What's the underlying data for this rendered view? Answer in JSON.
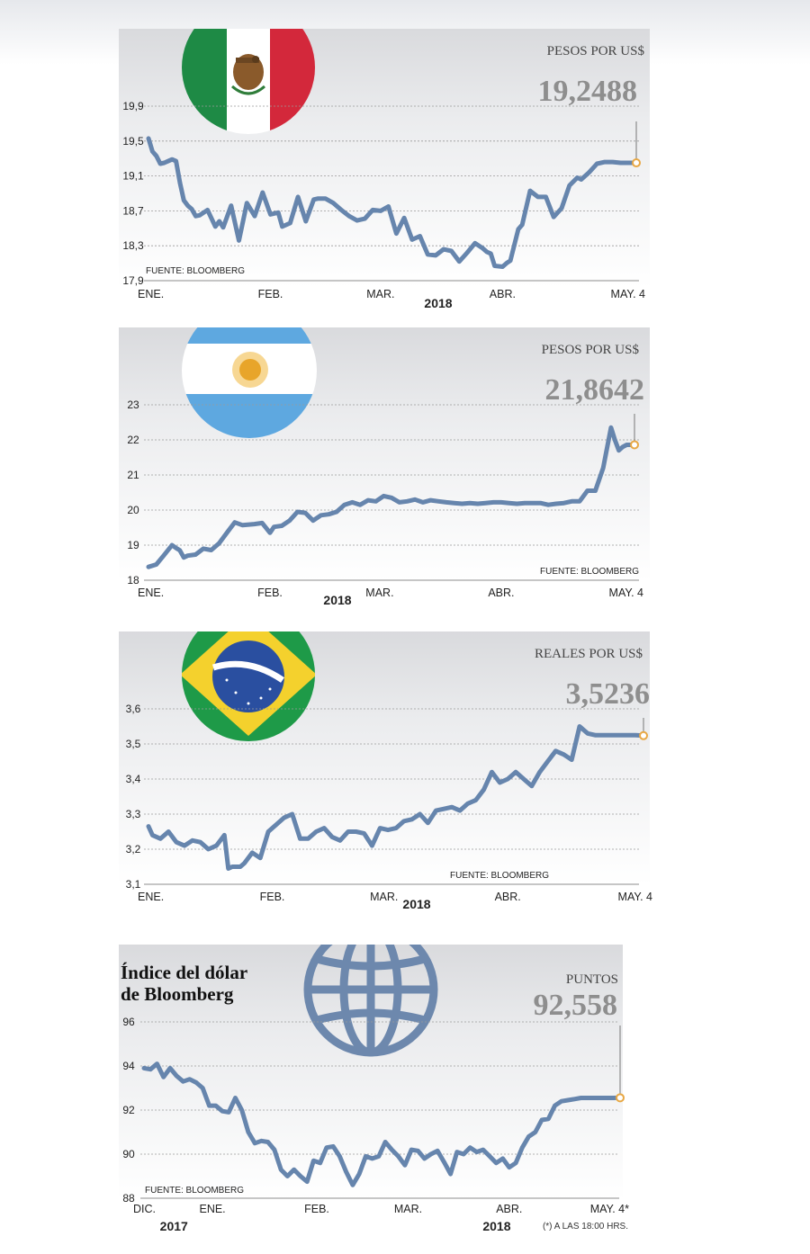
{
  "chart_data": [
    {
      "type": "line",
      "country": "mexico",
      "unit_label": "PESOS POR US$",
      "current_value": "19,2488",
      "source": "FUENTE: BLOOMBERG",
      "year_label": "2018",
      "y_ticks": [
        "17,9",
        "18,3",
        "18,7",
        "19,1",
        "19,5",
        "19,9"
      ],
      "ylim": [
        17.9,
        19.9
      ],
      "x_ticks": [
        {
          "label": "ENE.",
          "x": 0
        },
        {
          "label": "FEB.",
          "x": 31
        },
        {
          "label": "MAR.",
          "x": 59
        },
        {
          "label": "ABR.",
          "x": 90
        },
        {
          "label": "MAY. 4",
          "x": 124
        }
      ],
      "xlim": [
        0,
        124
      ],
      "series": [
        {
          "x": [
            0,
            1,
            2,
            3,
            4,
            5,
            6,
            7,
            8,
            9,
            10,
            11,
            12,
            13,
            15,
            17,
            18,
            19,
            21,
            23,
            25,
            27,
            29,
            31,
            33,
            34,
            36,
            38,
            40,
            42,
            43,
            45,
            47,
            49,
            51,
            53,
            55,
            57,
            59,
            61,
            63,
            65,
            67,
            69,
            71,
            73,
            75,
            77,
            79,
            81,
            83,
            85,
            86,
            87,
            88,
            90,
            91,
            92,
            94,
            95,
            97,
            99,
            101,
            103,
            105,
            107,
            109,
            110,
            112,
            114,
            116,
            118,
            120,
            121,
            122,
            124
          ],
          "y": [
            19.53,
            19.38,
            19.33,
            19.24,
            19.25,
            19.27,
            19.29,
            19.27,
            19.02,
            18.82,
            18.76,
            18.72,
            18.64,
            18.65,
            18.71,
            18.52,
            18.58,
            18.51,
            18.76,
            18.36,
            18.79,
            18.64,
            18.91,
            18.66,
            18.68,
            18.52,
            18.56,
            18.86,
            18.58,
            18.83,
            18.84,
            18.84,
            18.79,
            18.71,
            18.64,
            18.59,
            18.61,
            18.71,
            18.7,
            18.75,
            18.44,
            18.62,
            18.37,
            18.41,
            18.2,
            18.19,
            18.26,
            18.24,
            18.12,
            18.22,
            18.33,
            18.27,
            18.23,
            18.21,
            18.07,
            18.06,
            18.1,
            18.13,
            18.49,
            18.54,
            18.93,
            18.86,
            18.86,
            18.63,
            18.73,
            18.99,
            19.08,
            19.06,
            19.14,
            19.24,
            19.26,
            19.26,
            19.25,
            19.25,
            19.25,
            19.25
          ]
        }
      ]
    },
    {
      "type": "line",
      "country": "argentina",
      "unit_label": "PESOS POR US$",
      "current_value": "21,8642",
      "source": "FUENTE: BLOOMBERG",
      "year_label": "2018",
      "y_ticks": [
        "18",
        "19",
        "20",
        "21",
        "22",
        "23"
      ],
      "ylim": [
        18,
        23
      ],
      "x_ticks": [
        {
          "label": "ENE.",
          "x": 0
        },
        {
          "label": "FEB.",
          "x": 31
        },
        {
          "label": "MAR.",
          "x": 59
        },
        {
          "label": "ABR.",
          "x": 90
        },
        {
          "label": "MAY. 4",
          "x": 124
        }
      ],
      "xlim": [
        0,
        124
      ],
      "series": [
        {
          "x": [
            0,
            2,
            4,
            6,
            7,
            8,
            9,
            10,
            12,
            14,
            16,
            18,
            20,
            22,
            24,
            25,
            27,
            29,
            31,
            32,
            34,
            36,
            38,
            40,
            42,
            44,
            46,
            48,
            50,
            52,
            54,
            56,
            58,
            60,
            62,
            64,
            66,
            68,
            70,
            72,
            74,
            76,
            78,
            80,
            82,
            84,
            86,
            88,
            90,
            92,
            94,
            96,
            98,
            100,
            102,
            104,
            106,
            108,
            110,
            112,
            114,
            116,
            118,
            119,
            120,
            121,
            122,
            123,
            124
          ],
          "y": [
            18.38,
            18.45,
            18.72,
            19.0,
            18.92,
            18.85,
            18.65,
            18.7,
            18.73,
            18.9,
            18.86,
            19.05,
            19.35,
            19.65,
            19.57,
            19.58,
            19.6,
            19.63,
            19.35,
            19.52,
            19.55,
            19.7,
            19.95,
            19.92,
            19.7,
            19.85,
            19.88,
            19.95,
            20.15,
            20.22,
            20.15,
            20.28,
            20.25,
            20.4,
            20.35,
            20.22,
            20.25,
            20.3,
            20.22,
            20.28,
            20.25,
            20.22,
            20.2,
            20.18,
            20.2,
            20.18,
            20.2,
            20.22,
            20.22,
            20.2,
            20.18,
            20.2,
            20.2,
            20.2,
            20.15,
            20.18,
            20.2,
            20.25,
            20.25,
            20.55,
            20.55,
            21.2,
            22.35,
            22.0,
            21.7,
            21.8,
            21.86,
            21.86,
            21.86
          ]
        }
      ]
    },
    {
      "type": "line",
      "country": "brazil",
      "unit_label": "REALES POR US$",
      "current_value": "3,5236",
      "source": "FUENTE: BLOOMBERG",
      "year_label": "2018",
      "y_ticks": [
        "3,1",
        "3,2",
        "3,3",
        "3,4",
        "3,5",
        "3,6"
      ],
      "ylim": [
        3.1,
        3.6
      ],
      "x_ticks": [
        {
          "label": "ENE.",
          "x": 0
        },
        {
          "label": "FEB.",
          "x": 31
        },
        {
          "label": "MAR.",
          "x": 59
        },
        {
          "label": "ABR.",
          "x": 90
        },
        {
          "label": "MAY. 4",
          "x": 124
        }
      ],
      "xlim": [
        0,
        124
      ],
      "series": [
        {
          "x": [
            0,
            1,
            3,
            5,
            7,
            9,
            11,
            13,
            15,
            17,
            19,
            20,
            21,
            22,
            23,
            24,
            26,
            28,
            30,
            32,
            34,
            36,
            38,
            40,
            42,
            44,
            46,
            48,
            50,
            52,
            54,
            56,
            58,
            60,
            62,
            64,
            66,
            68,
            70,
            72,
            74,
            76,
            78,
            80,
            82,
            84,
            86,
            88,
            90,
            92,
            94,
            96,
            98,
            100,
            102,
            104,
            106,
            108,
            110,
            112,
            114,
            116,
            118,
            120,
            122,
            124
          ],
          "y": [
            3.265,
            3.24,
            3.23,
            3.25,
            3.22,
            3.21,
            3.225,
            3.22,
            3.2,
            3.21,
            3.24,
            3.145,
            3.15,
            3.15,
            3.15,
            3.16,
            3.19,
            3.175,
            3.25,
            3.27,
            3.29,
            3.3,
            3.23,
            3.23,
            3.25,
            3.26,
            3.235,
            3.225,
            3.25,
            3.25,
            3.245,
            3.21,
            3.26,
            3.255,
            3.26,
            3.28,
            3.285,
            3.3,
            3.275,
            3.31,
            3.315,
            3.32,
            3.31,
            3.33,
            3.34,
            3.37,
            3.42,
            3.39,
            3.4,
            3.42,
            3.4,
            3.38,
            3.42,
            3.45,
            3.48,
            3.47,
            3.455,
            3.55,
            3.53,
            3.525,
            3.525,
            3.525,
            3.525,
            3.525,
            3.525,
            3.5236
          ]
        }
      ]
    },
    {
      "type": "line",
      "country": "dollar-index",
      "title_line1": "Índice del dólar",
      "title_line2": "de Bloomberg",
      "unit_label": "PUNTOS",
      "current_value": "92,558",
      "source": "FUENTE: BLOOMBERG",
      "year_labels": [
        {
          "label": "2017",
          "x": 2
        },
        {
          "label": "2018",
          "x": 101
        }
      ],
      "note": "(*) A LAS 18:00 HRS.",
      "y_ticks": [
        "88",
        "90",
        "92",
        "94",
        "96"
      ],
      "ylim": [
        88,
        96
      ],
      "x_ticks": [
        {
          "label": "DIC.",
          "x": 0
        },
        {
          "label": "ENE.",
          "x": 21
        },
        {
          "label": "FEB.",
          "x": 53
        },
        {
          "label": "MAR.",
          "x": 81
        },
        {
          "label": "ABR.",
          "x": 112
        },
        {
          "label": "MAY. 4*",
          "x": 146
        }
      ],
      "xlim": [
        0,
        146
      ],
      "series": [
        {
          "x": [
            0,
            2,
            4,
            6,
            8,
            10,
            12,
            14,
            16,
            18,
            20,
            22,
            24,
            26,
            28,
            30,
            32,
            34,
            36,
            38,
            40,
            42,
            44,
            46,
            48,
            50,
            52,
            54,
            56,
            58,
            60,
            62,
            64,
            66,
            68,
            70,
            72,
            74,
            76,
            78,
            80,
            82,
            84,
            86,
            88,
            90,
            92,
            94,
            96,
            98,
            100,
            102,
            104,
            106,
            108,
            110,
            112,
            114,
            116,
            118,
            120,
            122,
            124,
            126,
            128,
            130,
            132,
            134,
            136,
            138,
            140,
            142,
            144,
            146
          ],
          "y": [
            93.9,
            93.85,
            94.1,
            93.5,
            93.9,
            93.55,
            93.3,
            93.4,
            93.25,
            93.0,
            92.2,
            92.2,
            91.95,
            91.9,
            92.55,
            92.0,
            91.0,
            90.5,
            90.6,
            90.55,
            90.2,
            89.3,
            89.0,
            89.3,
            89.0,
            88.75,
            89.7,
            89.6,
            90.3,
            90.35,
            89.9,
            89.2,
            88.6,
            89.1,
            89.9,
            89.8,
            89.9,
            90.55,
            90.2,
            89.9,
            89.5,
            90.2,
            90.15,
            89.8,
            90.0,
            90.15,
            89.65,
            89.1,
            90.1,
            90.0,
            90.3,
            90.1,
            90.2,
            89.9,
            89.6,
            89.8,
            89.4,
            89.6,
            90.3,
            90.8,
            91.0,
            91.55,
            91.6,
            92.2,
            92.4,
            92.45,
            92.5,
            92.55,
            92.55,
            92.55,
            92.55,
            92.55,
            92.55,
            92.558
          ]
        }
      ]
    }
  ]
}
